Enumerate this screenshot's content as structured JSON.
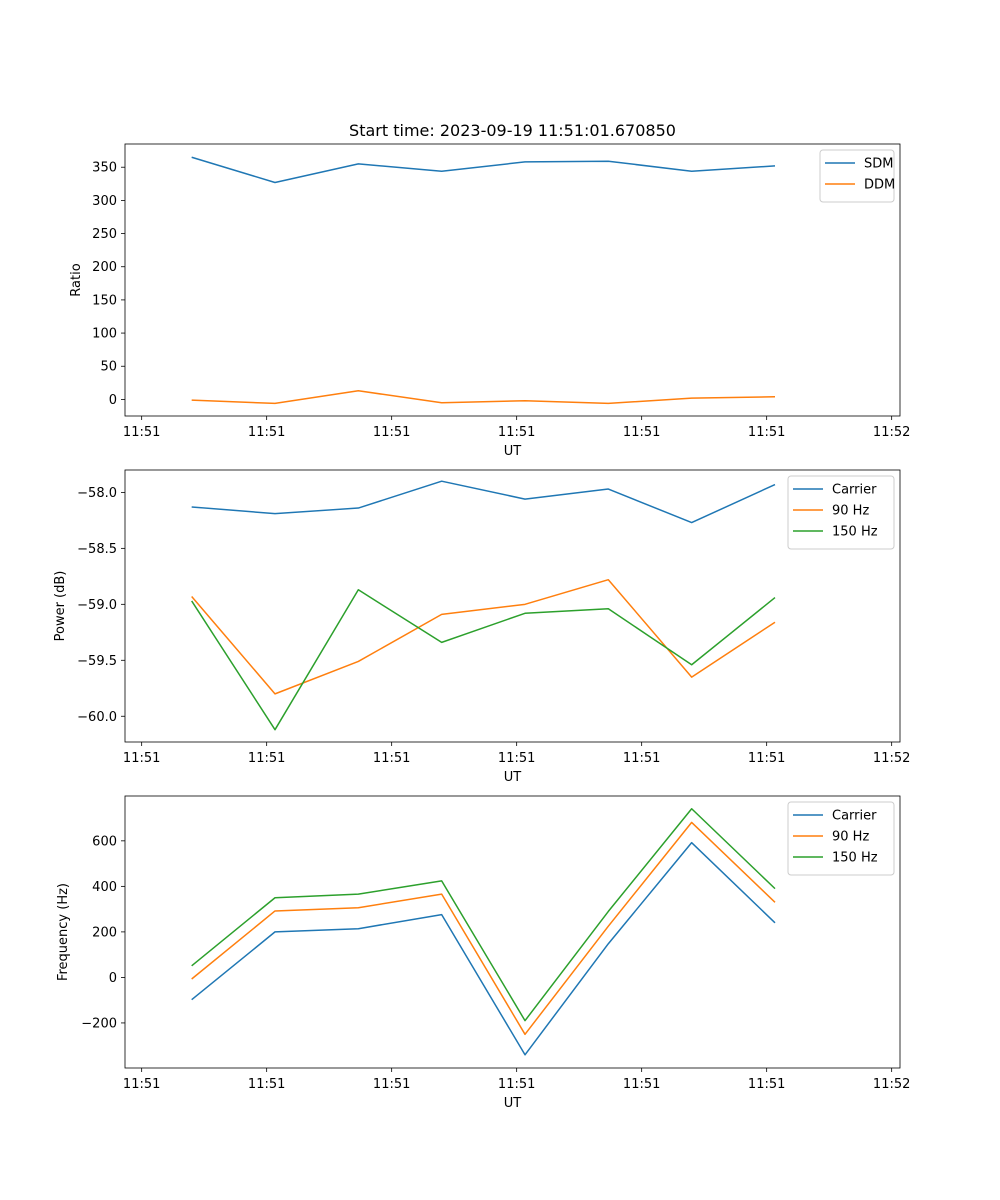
{
  "chart_data": [
    {
      "type": "line",
      "title": "Start time: 2023-09-19 11:51:01.670850",
      "xlabel": "UT",
      "ylabel": "Ratio",
      "x": [
        1,
        2,
        3,
        4,
        5,
        6,
        7,
        8
      ],
      "xlim": [
        0.2,
        9.5
      ],
      "x_ticks": [
        0.4,
        1.9,
        3.4,
        4.9,
        6.4,
        7.9,
        9.4
      ],
      "x_tick_labels": [
        "11:51",
        "11:51",
        "11:51",
        "11:51",
        "11:51",
        "11:51",
        "11:52"
      ],
      "ylim": [
        -25,
        385
      ],
      "y_ticks": [
        0,
        50,
        100,
        150,
        200,
        250,
        300,
        350
      ],
      "y_tick_labels": [
        "0",
        "50",
        "100",
        "150",
        "200",
        "250",
        "300",
        "350"
      ],
      "legend": "top-right",
      "series": [
        {
          "name": "SDM",
          "color": "#1f77b4",
          "values": [
            365,
            327,
            355,
            344,
            358,
            359,
            344,
            352
          ]
        },
        {
          "name": "DDM",
          "color": "#ff7f0e",
          "values": [
            -1,
            -6,
            13,
            -5,
            -2,
            -6,
            2,
            4
          ]
        }
      ]
    },
    {
      "type": "line",
      "title": "",
      "xlabel": "UT",
      "ylabel": "Power (dB)",
      "x": [
        1,
        2,
        3,
        4,
        5,
        6,
        7,
        8
      ],
      "xlim": [
        0.2,
        9.5
      ],
      "x_ticks": [
        0.4,
        1.9,
        3.4,
        4.9,
        6.4,
        7.9,
        9.4
      ],
      "x_tick_labels": [
        "11:51",
        "11:51",
        "11:51",
        "11:51",
        "11:51",
        "11:51",
        "11:52"
      ],
      "ylim": [
        -60.23,
        -57.8
      ],
      "y_ticks": [
        -60.0,
        -59.5,
        -59.0,
        -58.5,
        -58.0
      ],
      "y_tick_labels": [
        "−60.0",
        "−59.5",
        "−59.0",
        "−58.5",
        "−58.0"
      ],
      "legend": "top-right",
      "series": [
        {
          "name": "Carrier",
          "color": "#1f77b4",
          "values": [
            -58.13,
            -58.19,
            -58.14,
            -57.9,
            -58.06,
            -57.97,
            -58.27,
            -57.93
          ]
        },
        {
          "name": "90 Hz",
          "color": "#ff7f0e",
          "values": [
            -58.93,
            -59.8,
            -59.51,
            -59.09,
            -59.0,
            -58.78,
            -59.65,
            -59.16
          ]
        },
        {
          "name": "150 Hz",
          "color": "#2ca02c",
          "values": [
            -58.97,
            -60.12,
            -58.87,
            -59.34,
            -59.08,
            -59.04,
            -59.54,
            -58.94
          ]
        }
      ]
    },
    {
      "type": "line",
      "title": "",
      "xlabel": "UT",
      "ylabel": "Frequency (Hz)",
      "x": [
        1,
        2,
        3,
        4,
        5,
        6,
        7,
        8
      ],
      "xlim": [
        0.2,
        9.5
      ],
      "x_ticks": [
        0.4,
        1.9,
        3.4,
        4.9,
        6.4,
        7.9,
        9.4
      ],
      "x_tick_labels": [
        "11:51",
        "11:51",
        "11:51",
        "11:51",
        "11:51",
        "11:51",
        "11:52"
      ],
      "ylim": [
        -398,
        797
      ],
      "y_ticks": [
        -200,
        0,
        200,
        400,
        600
      ],
      "y_tick_labels": [
        "−200",
        "0",
        "200",
        "400",
        "600"
      ],
      "legend": "top-right",
      "series": [
        {
          "name": "Carrier",
          "color": "#1f77b4",
          "values": [
            -98,
            200,
            214,
            276,
            -340,
            148,
            592,
            240
          ]
        },
        {
          "name": "90 Hz",
          "color": "#ff7f0e",
          "values": [
            -7,
            292,
            306,
            366,
            -250,
            225,
            681,
            330
          ]
        },
        {
          "name": "150 Hz",
          "color": "#2ca02c",
          "values": [
            51,
            350,
            366,
            424,
            -190,
            290,
            741,
            390
          ]
        }
      ]
    }
  ]
}
